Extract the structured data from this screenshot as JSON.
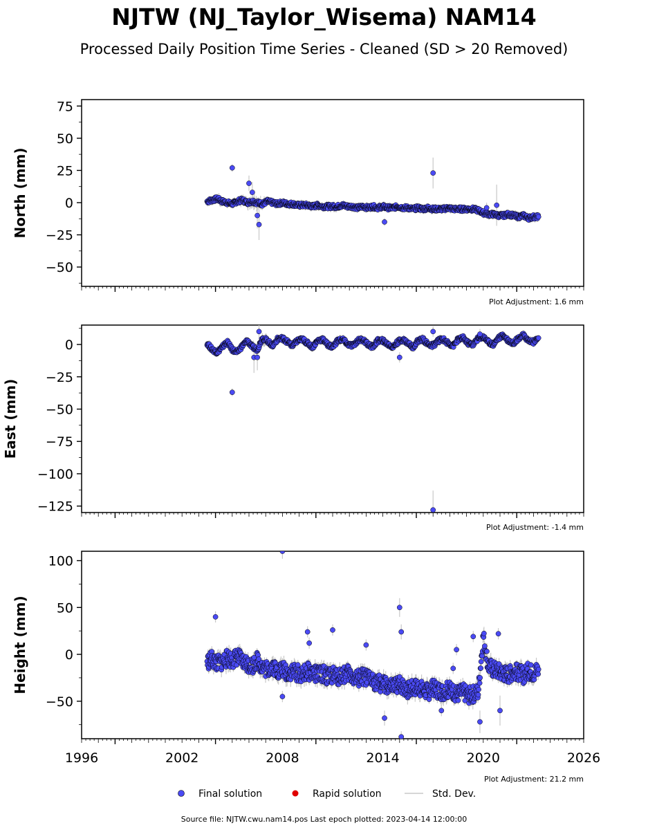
{
  "title": "NJTW (NJ_Taylor_Wisema) NAM14",
  "subtitle": "Processed Daily Position Time Series - Cleaned (SD > 20 Removed)",
  "source_note": "Source file: NJTW.cwu.nam14.pos  Last epoch plotted: 2023-04-14 12:00:00",
  "colors": {
    "final": "#4a4af4",
    "rapid": "#e00000",
    "std": "#c8c8c8",
    "edge": "#000000"
  },
  "legend": [
    {
      "label": "Final solution",
      "color": "#4a4af4",
      "kind": "dot"
    },
    {
      "label": "Rapid solution",
      "color": "#e00000",
      "kind": "dot"
    },
    {
      "label": "Std. Dev.",
      "color": "#c8c8c8",
      "kind": "line"
    }
  ],
  "chart_data": [
    {
      "type": "scatter",
      "ylabel": "North (mm)",
      "adjustment": "Plot Adjustment: 1.6 mm",
      "xlim": [
        1996,
        2026
      ],
      "ylim": [
        -65,
        80
      ],
      "yticks": [
        75,
        50,
        25,
        0,
        -25,
        -50
      ],
      "ytick_labels": [
        "75",
        "50",
        "25",
        "0",
        "−25",
        "−50"
      ],
      "xticks": [],
      "xtick_labels": [],
      "series": [
        {
          "x": [
            2003.5,
            2003.8,
            2004.1,
            2004.4,
            2004.7,
            2005.0,
            2005.3,
            2005.6,
            2005.9,
            2006.2,
            2006.5,
            2006.8,
            2007.1,
            2007.4,
            2007.7,
            2008.0,
            2008.3,
            2008.6,
            2008.9,
            2009.2,
            2009.5,
            2009.8,
            2010.1,
            2010.4,
            2010.7,
            2011.0,
            2011.3,
            2011.6,
            2011.9,
            2012.2,
            2012.5,
            2012.8,
            2013.1,
            2013.4,
            2013.7,
            2014.0,
            2014.3,
            2014.6,
            2014.9,
            2015.2,
            2015.5,
            2015.8,
            2016.1,
            2016.4,
            2016.7,
            2017.0,
            2017.3,
            2017.6,
            2017.9,
            2018.2,
            2018.5,
            2018.8,
            2019.1,
            2019.4,
            2019.7,
            2020.0,
            2020.3,
            2020.6,
            2020.9,
            2021.2,
            2021.5,
            2021.8,
            2022.1,
            2022.4,
            2022.7,
            2023.0,
            2023.3
          ],
          "y": [
            1,
            2,
            3,
            1,
            0,
            -1,
            1,
            2,
            0,
            1,
            0,
            -1,
            1,
            0,
            -1,
            0,
            -1,
            -1,
            -2,
            -2,
            -2,
            -3,
            -2,
            -3,
            -3,
            -3,
            -3,
            -2,
            -3,
            -3,
            -4,
            -3,
            -4,
            -3,
            -4,
            -3,
            -4,
            -4,
            -3,
            -4,
            -4,
            -5,
            -4,
            -5,
            -4,
            -5,
            -5,
            -5,
            -4,
            -5,
            -5,
            -5,
            -5,
            -5,
            -6,
            -8,
            -9,
            -9,
            -10,
            -10,
            -9,
            -10,
            -11,
            -10,
            -12,
            -11,
            -11
          ],
          "err": [
            3,
            3,
            4,
            3,
            3,
            3,
            4,
            4,
            5,
            6,
            5,
            4,
            3,
            3,
            3,
            3,
            3,
            3,
            3,
            3,
            3,
            3,
            3,
            3,
            3,
            4,
            3,
            3,
            3,
            3,
            3,
            3,
            3,
            3,
            3,
            3,
            3,
            3,
            3,
            3,
            3,
            3,
            3,
            3,
            3,
            3,
            3,
            3,
            3,
            3,
            3,
            3,
            3,
            3,
            3,
            3,
            3,
            3,
            3,
            3,
            3,
            3,
            3,
            3,
            3,
            3,
            3
          ]
        }
      ],
      "outliers": {
        "x": [
          2005.0,
          2006.0,
          2006.2,
          2006.5,
          2006.6,
          2014.1,
          2017.0,
          2020.2,
          2020.8
        ],
        "y": [
          27,
          15,
          8,
          -10,
          -17,
          -15,
          23,
          -4,
          -2
        ],
        "err": [
          3,
          6,
          8,
          10,
          12,
          3,
          12,
          4,
          16
        ]
      }
    },
    {
      "type": "scatter",
      "ylabel": "East (mm)",
      "adjustment": "Plot Adjustment: -1.4 mm",
      "xlim": [
        1996,
        2026
      ],
      "ylim": [
        -130,
        15
      ],
      "yticks": [
        0,
        -25,
        -50,
        -75,
        -100,
        -125
      ],
      "ytick_labels": [
        "0",
        "−25",
        "−50",
        "−75",
        "−100",
        "−125"
      ],
      "xticks": [],
      "xtick_labels": [],
      "series": [
        {
          "x": [
            2003.5,
            2003.8,
            2004.1,
            2004.4,
            2004.7,
            2005.0,
            2005.3,
            2005.6,
            2005.9,
            2006.2,
            2006.5,
            2006.8,
            2007.1,
            2007.4,
            2007.7,
            2008.0,
            2008.3,
            2008.6,
            2008.9,
            2009.2,
            2009.5,
            2009.8,
            2010.1,
            2010.4,
            2010.7,
            2011.0,
            2011.3,
            2011.6,
            2011.9,
            2012.2,
            2012.5,
            2012.8,
            2013.1,
            2013.4,
            2013.7,
            2014.0,
            2014.3,
            2014.6,
            2014.9,
            2015.2,
            2015.5,
            2015.8,
            2016.1,
            2016.4,
            2016.7,
            2017.0,
            2017.3,
            2017.6,
            2017.9,
            2018.2,
            2018.5,
            2018.8,
            2019.1,
            2019.4,
            2019.7,
            2020.0,
            2020.3,
            2020.6,
            2020.9,
            2021.2,
            2021.5,
            2021.8,
            2022.1,
            2022.4,
            2022.7,
            2023.0,
            2023.3
          ],
          "y": [
            1,
            -4,
            -6,
            -2,
            2,
            -4,
            -6,
            -1,
            3,
            -2,
            -4,
            5,
            3,
            -1,
            4,
            5,
            2,
            -1,
            3,
            4,
            1,
            -2,
            3,
            4,
            0,
            -2,
            3,
            4,
            0,
            -1,
            3,
            4,
            0,
            -2,
            3,
            3,
            0,
            -2,
            2,
            4,
            1,
            -2,
            3,
            4,
            0,
            -1,
            3,
            4,
            1,
            -1,
            4,
            5,
            1,
            0,
            5,
            6,
            2,
            0,
            5,
            7,
            3,
            1,
            5,
            7,
            3,
            2,
            5
          ],
          "err": [
            3,
            3,
            3,
            3,
            3,
            3,
            3,
            3,
            3,
            4,
            4,
            5,
            3,
            3,
            3,
            3,
            3,
            3,
            3,
            3,
            3,
            3,
            3,
            3,
            3,
            3,
            3,
            3,
            3,
            3,
            3,
            3,
            3,
            3,
            3,
            3,
            3,
            3,
            3,
            3,
            3,
            3,
            3,
            3,
            3,
            3,
            3,
            3,
            3,
            3,
            3,
            3,
            3,
            3,
            3,
            3,
            3,
            3,
            3,
            3,
            3,
            3,
            3,
            3,
            3,
            3,
            3
          ]
        }
      ],
      "outliers": {
        "x": [
          2005.0,
          2006.3,
          2006.5,
          2006.6,
          2015.0,
          2017.0,
          2017.0,
          2019.8
        ],
        "y": [
          -37,
          -10,
          -10,
          10,
          -10,
          -128,
          10,
          8
        ],
        "err": [
          3,
          12,
          10,
          5,
          4,
          15,
          4,
          4
        ]
      }
    },
    {
      "type": "scatter",
      "ylabel": "Height (mm)",
      "adjustment": "Plot Adjustment: 21.2 mm",
      "xlim": [
        1996,
        2026
      ],
      "ylim": [
        -90,
        110
      ],
      "yticks": [
        100,
        50,
        0,
        -50
      ],
      "ytick_labels": [
        "100",
        "50",
        "0",
        "−50"
      ],
      "xticks": [
        1996,
        2002,
        2008,
        2014,
        2020,
        2026
      ],
      "xtick_labels": [
        "1996",
        "2002",
        "2008",
        "2014",
        "2020",
        "2026"
      ],
      "series": [
        {
          "x": [
            2003.5,
            2003.8,
            2004.1,
            2004.4,
            2004.7,
            2005.0,
            2005.3,
            2005.6,
            2005.9,
            2006.2,
            2006.5,
            2006.8,
            2007.1,
            2007.4,
            2007.7,
            2008.0,
            2008.3,
            2008.6,
            2008.9,
            2009.2,
            2009.5,
            2009.8,
            2010.1,
            2010.4,
            2010.7,
            2011.0,
            2011.3,
            2011.6,
            2011.9,
            2012.2,
            2012.5,
            2012.8,
            2013.1,
            2013.4,
            2013.7,
            2014.0,
            2014.3,
            2014.6,
            2014.9,
            2015.2,
            2015.5,
            2015.8,
            2016.1,
            2016.4,
            2016.7,
            2017.0,
            2017.3,
            2017.6,
            2017.9,
            2018.2,
            2018.5,
            2018.8,
            2019.1,
            2019.4,
            2019.7,
            2020.0,
            2020.3,
            2020.6,
            2020.9,
            2021.2,
            2021.5,
            2021.8,
            2022.1,
            2022.4,
            2022.7,
            2023.0,
            2023.3
          ],
          "y": [
            -8,
            -5,
            -10,
            -8,
            -4,
            -6,
            -2,
            -8,
            -10,
            -12,
            -6,
            -14,
            -16,
            -12,
            -18,
            -16,
            -20,
            -18,
            -20,
            -22,
            -18,
            -20,
            -22,
            -20,
            -24,
            -22,
            -24,
            -22,
            -20,
            -24,
            -26,
            -24,
            -26,
            -28,
            -30,
            -32,
            -34,
            -36,
            -32,
            -34,
            -38,
            -36,
            -34,
            -38,
            -40,
            -36,
            -38,
            -40,
            -38,
            -40,
            -42,
            -40,
            -44,
            -42,
            -40,
            20,
            -12,
            -16,
            -18,
            -20,
            -22,
            -18,
            -20,
            -22,
            -18,
            -20,
            -16
          ],
          "err": [
            8,
            8,
            8,
            8,
            8,
            8,
            8,
            8,
            8,
            8,
            8,
            8,
            8,
            8,
            8,
            8,
            8,
            8,
            8,
            8,
            8,
            8,
            8,
            8,
            8,
            8,
            8,
            8,
            8,
            8,
            8,
            8,
            8,
            8,
            8,
            8,
            8,
            8,
            8,
            8,
            8,
            8,
            8,
            8,
            8,
            8,
            8,
            8,
            8,
            8,
            8,
            8,
            8,
            8,
            8,
            10,
            8,
            8,
            8,
            8,
            8,
            8,
            8,
            8,
            8,
            8,
            8
          ]
        }
      ],
      "outliers": {
        "x": [
          2004.0,
          2008.0,
          2008.0,
          2009.5,
          2009.6,
          2011.0,
          2013.0,
          2014.1,
          2015.0,
          2015.1,
          2015.1,
          2017.5,
          2018.4,
          2018.2,
          2019.4,
          2019.8,
          2020.9,
          2021.0
        ],
        "y": [
          40,
          110,
          -45,
          24,
          12,
          26,
          10,
          -68,
          50,
          24,
          -88,
          -60,
          5,
          -15,
          19,
          -72,
          22,
          -60
        ],
        "err": [
          6,
          8,
          6,
          6,
          6,
          6,
          6,
          8,
          10,
          8,
          6,
          6,
          6,
          6,
          6,
          12,
          6,
          16
        ]
      }
    }
  ]
}
